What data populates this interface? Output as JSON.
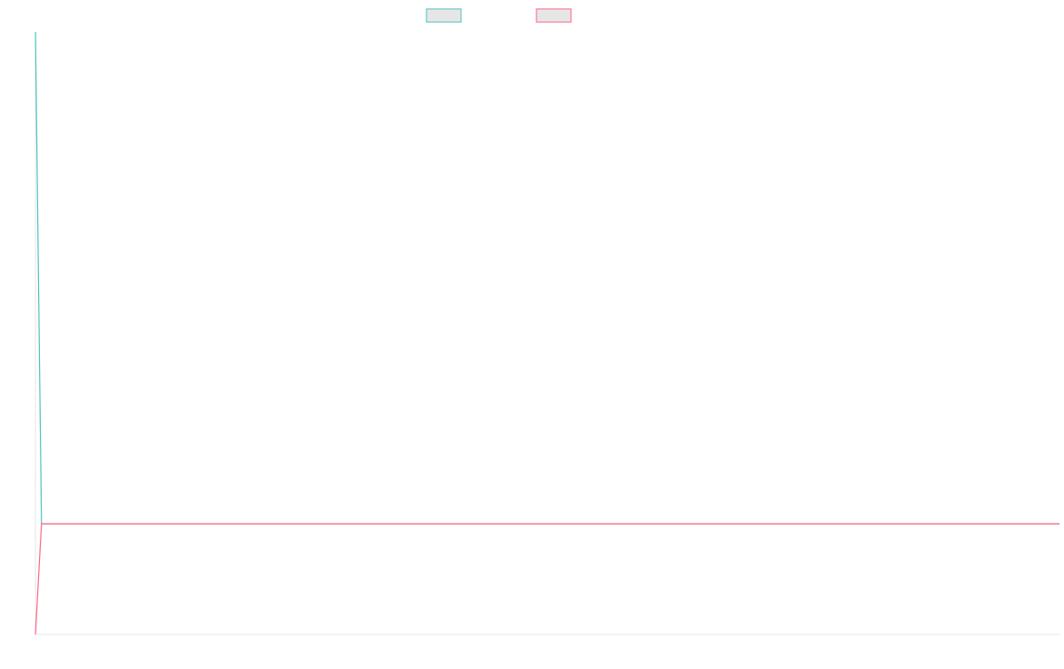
{
  "chart_data": {
    "type": "line",
    "x": [
      0,
      1,
      2,
      3,
      4,
      5,
      6,
      7,
      8,
      9,
      10,
      11,
      12,
      13,
      14,
      15,
      16,
      17,
      18,
      19,
      20,
      21,
      22,
      23,
      24,
      25,
      26,
      27,
      28,
      29,
      30,
      31,
      32,
      33,
      34,
      35,
      36,
      37,
      38,
      39,
      40,
      41,
      42,
      43,
      44,
      45,
      46,
      47,
      48,
      49,
      50,
      51,
      52,
      53,
      54,
      55,
      56,
      57,
      58,
      59,
      60,
      61,
      62,
      63,
      64,
      65,
      66,
      67,
      68,
      69,
      70,
      71,
      72,
      73,
      74,
      75,
      76,
      77,
      78,
      79,
      80,
      81,
      82,
      83,
      84,
      85,
      86,
      87,
      88,
      89,
      90,
      91,
      92,
      93,
      94,
      95,
      96,
      97,
      98,
      99,
      100,
      101,
      102,
      103,
      104,
      105,
      106,
      107,
      108,
      109,
      110,
      111,
      112,
      113,
      114,
      115,
      116,
      117,
      118,
      119,
      120,
      121,
      122,
      123,
      124,
      125,
      126,
      127,
      128,
      129,
      130,
      131,
      132,
      133,
      134,
      135,
      136,
      137,
      138,
      139,
      140,
      141,
      142,
      143,
      144,
      145,
      146,
      147,
      148,
      149,
      150,
      151,
      152,
      153,
      154,
      155,
      156,
      157,
      158,
      159,
      160,
      161,
      162,
      163,
      164,
      165,
      166,
      167,
      168,
      169,
      170
    ],
    "series": [
      {
        "color": "#4bc0c0",
        "values": [
          100,
          0,
          0,
          0,
          0,
          0,
          0,
          0,
          0,
          0,
          0,
          0,
          0,
          0,
          0,
          0,
          0,
          0,
          0,
          0,
          0,
          0,
          0,
          0,
          0,
          0,
          0,
          0,
          0,
          0,
          0,
          0,
          0,
          0,
          0,
          0,
          0,
          0,
          0,
          0,
          0,
          0,
          0,
          0,
          0,
          0,
          0,
          0,
          0,
          0,
          0,
          0,
          0,
          0,
          0,
          0,
          0,
          0,
          0,
          0,
          0,
          0,
          0,
          0,
          0,
          0,
          0,
          0,
          0,
          0,
          0,
          0,
          0,
          0,
          0,
          0,
          0,
          0,
          0,
          0,
          0,
          0,
          0,
          0,
          0,
          0,
          0,
          0,
          0,
          0,
          0,
          0,
          0,
          0,
          0,
          0,
          0,
          0,
          0,
          0,
          0,
          0,
          0,
          0,
          0,
          0,
          0,
          0,
          0,
          0,
          0,
          0,
          0,
          0,
          0,
          0,
          0,
          0,
          0,
          0,
          0,
          0,
          0,
          0,
          0,
          0,
          0,
          0,
          0,
          0,
          0,
          0,
          0,
          0,
          0,
          0,
          0,
          0,
          0,
          0,
          0,
          0,
          0,
          0,
          0,
          0,
          0,
          0,
          0,
          0,
          0,
          0,
          0,
          0,
          0,
          0,
          0,
          0,
          0,
          0,
          0,
          0,
          0,
          0,
          0,
          0,
          0,
          0,
          0,
          0,
          0
        ]
      },
      {
        "color": "#ff6384",
        "values": [
          -22.5,
          0,
          0,
          0,
          0,
          0,
          0,
          0,
          0,
          0,
          0,
          0,
          0,
          0,
          0,
          0,
          0,
          0,
          0,
          0,
          0,
          0,
          0,
          0,
          0,
          0,
          0,
          0,
          0,
          0,
          0,
          0,
          0,
          0,
          0,
          0,
          0,
          0,
          0,
          0,
          0,
          0,
          0,
          0,
          0,
          0,
          0,
          0,
          0,
          0,
          0,
          0,
          0,
          0,
          0,
          0,
          0,
          0,
          0,
          0,
          0,
          0,
          0,
          0,
          0,
          0,
          0,
          0,
          0,
          0,
          0,
          0,
          0,
          0,
          0,
          0,
          0,
          0,
          0,
          0,
          0,
          0,
          0,
          0,
          0,
          0,
          0,
          0,
          0,
          0,
          0,
          0,
          0,
          0,
          0,
          0,
          0,
          0,
          0,
          0,
          0,
          0,
          0,
          0,
          0,
          0,
          0,
          0,
          0,
          0,
          0,
          0,
          0,
          0,
          0,
          0,
          0,
          0,
          0,
          0,
          0,
          0,
          0,
          0,
          0,
          0,
          0,
          0,
          0,
          0,
          0,
          0,
          0,
          0,
          0,
          0,
          0,
          0,
          0,
          0,
          0,
          0,
          0,
          0,
          0,
          0,
          0,
          0,
          0,
          0,
          0,
          0,
          0,
          0,
          0,
          0,
          0,
          0,
          0,
          0,
          0,
          0,
          0,
          0,
          0,
          0,
          0,
          0,
          0,
          0,
          0
        ]
      }
    ],
    "xlim": [
      0,
      170
    ],
    "ylim": [
      -22.5,
      100
    ],
    "grid": false,
    "legend_position": "top-center"
  }
}
